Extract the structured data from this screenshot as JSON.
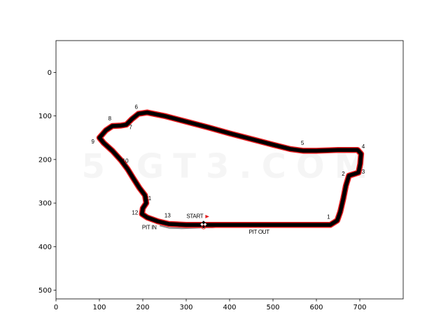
{
  "chart_data": {
    "type": "track-map",
    "xlim": [
      0,
      800
    ],
    "ylim": [
      520,
      -73
    ],
    "y_inverted": true,
    "x_ticks": [
      0,
      100,
      200,
      300,
      400,
      500,
      600,
      700
    ],
    "y_ticks": [
      0,
      100,
      200,
      300,
      400,
      500
    ],
    "track_path": [
      [
        100,
        150
      ],
      [
        115,
        133
      ],
      [
        130,
        123
      ],
      [
        150,
        122
      ],
      [
        162,
        120
      ],
      [
        175,
        107
      ],
      [
        190,
        95
      ],
      [
        210,
        92
      ],
      [
        250,
        100
      ],
      [
        300,
        113
      ],
      [
        350,
        126
      ],
      [
        400,
        140
      ],
      [
        450,
        153
      ],
      [
        500,
        166
      ],
      [
        540,
        176
      ],
      [
        570,
        180
      ],
      [
        600,
        180
      ],
      [
        650,
        178
      ],
      [
        695,
        178
      ],
      [
        703,
        187
      ],
      [
        701,
        210
      ],
      [
        697,
        230
      ],
      [
        688,
        233
      ],
      [
        675,
        237
      ],
      [
        668,
        260
      ],
      [
        662,
        290
      ],
      [
        655,
        320
      ],
      [
        648,
        340
      ],
      [
        632,
        350
      ],
      [
        600,
        350
      ],
      [
        500,
        350
      ],
      [
        400,
        350
      ],
      [
        300,
        350
      ],
      [
        260,
        348
      ],
      [
        235,
        342
      ],
      [
        210,
        333
      ],
      [
        198,
        325
      ],
      [
        200,
        312
      ],
      [
        208,
        300
      ],
      [
        205,
        282
      ],
      [
        192,
        265
      ],
      [
        178,
        243
      ],
      [
        165,
        222
      ],
      [
        150,
        202
      ],
      [
        130,
        180
      ],
      [
        110,
        162
      ],
      [
        100,
        150
      ]
    ],
    "pit_lane_path": [
      [
        240,
        352
      ],
      [
        260,
        357
      ],
      [
        290,
        358
      ],
      [
        320,
        357
      ],
      [
        340,
        356
      ],
      [
        360,
        356
      ],
      [
        380,
        354
      ],
      [
        400,
        352
      ]
    ],
    "corners": [
      {
        "label": "1",
        "x": 628,
        "y": 333
      },
      {
        "label": "2",
        "x": 662,
        "y": 234
      },
      {
        "label": "3",
        "x": 708,
        "y": 229
      },
      {
        "label": "4",
        "x": 708,
        "y": 171
      },
      {
        "label": "5",
        "x": 568,
        "y": 163
      },
      {
        "label": "6",
        "x": 185,
        "y": 80
      },
      {
        "label": "7",
        "x": 172,
        "y": 127
      },
      {
        "label": "8",
        "x": 124,
        "y": 107
      },
      {
        "label": "9",
        "x": 85,
        "y": 160
      },
      {
        "label": "10",
        "x": 160,
        "y": 204
      },
      {
        "label": "11",
        "x": 213,
        "y": 290
      },
      {
        "label": "12",
        "x": 182,
        "y": 323
      },
      {
        "label": "13",
        "x": 257,
        "y": 329
      }
    ],
    "annotations": [
      {
        "text": "START",
        "x": 320,
        "y": 331,
        "marker": "flag",
        "marker_color": "#e41a1c"
      },
      {
        "text": "PIT IN",
        "x": 215,
        "y": 357
      },
      {
        "text": "PIT OUT",
        "x": 468,
        "y": 367
      }
    ],
    "start_marker": {
      "x": 340,
      "y": 349
    },
    "watermark": "5 GT3.COM",
    "colors": {
      "track": "#000000",
      "track_outline": "#e41a1c",
      "pit_lane": "#909090",
      "start_flag": "#e41a1c"
    }
  }
}
